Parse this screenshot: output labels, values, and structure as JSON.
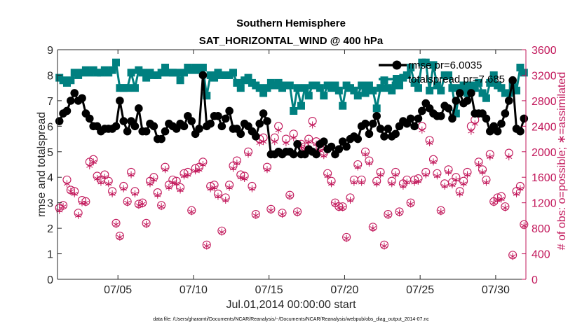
{
  "chart_data": {
    "type": "line",
    "title": "Southern Hemisphere",
    "subtitle": "SAT_HORIZONTAL_WIND @ 400 hPa",
    "xlabel": "Jul.01,2014 00:00:00 start",
    "ylabel": "rmse and totalspread",
    "ylabel_right": "# of obs: o=possible; ∗=assimilated",
    "xlim": [
      1.0,
      32.0
    ],
    "ylim": [
      0,
      9
    ],
    "ylim_right": [
      0,
      3600
    ],
    "x_ticks": [
      5,
      10,
      15,
      20,
      25,
      30
    ],
    "x_tick_labels": [
      "07/05",
      "07/10",
      "07/15",
      "07/20",
      "07/25",
      "07/30"
    ],
    "y_ticks": [
      0,
      1,
      2,
      3,
      4,
      5,
      6,
      7,
      8,
      9
    ],
    "y_ticks_right": [
      0,
      400,
      800,
      1200,
      1600,
      2000,
      2400,
      2800,
      3200,
      3600
    ],
    "footer": "data file: /Users/gharamti/Documents/NCAR/Reanalysis/~/Documents/NCAR/Reanalysis/webpub/obs_diag_output_2014-07.nc",
    "legend_position": "top-right",
    "colors": {
      "rmse": "#000000",
      "spread": "#008080",
      "obs": "#c2185b",
      "axis": "#262626"
    },
    "series": [
      {
        "name": "rmse pr=6.0035",
        "axis": "left",
        "color": "#000000",
        "marker": "circle",
        "x": [
          1.125,
          1.375,
          1.625,
          1.875,
          2.125,
          2.375,
          2.625,
          2.875,
          3.125,
          3.375,
          3.625,
          3.875,
          4.125,
          4.375,
          4.625,
          4.875,
          5.125,
          5.375,
          5.625,
          5.875,
          6.125,
          6.375,
          6.625,
          6.875,
          7.125,
          7.375,
          7.625,
          7.875,
          8.125,
          8.375,
          8.625,
          8.875,
          9.125,
          9.375,
          9.625,
          9.875,
          10.125,
          10.375,
          10.625,
          10.875,
          11.125,
          11.375,
          11.625,
          11.875,
          12.125,
          12.375,
          12.625,
          12.875,
          13.125,
          13.375,
          13.625,
          13.875,
          14.125,
          14.375,
          14.625,
          14.875,
          15.125,
          15.375,
          15.625,
          15.875,
          16.125,
          16.375,
          16.625,
          16.875,
          17.125,
          17.375,
          17.625,
          17.875,
          18.125,
          18.375,
          18.625,
          18.875,
          19.125,
          19.375,
          19.625,
          19.875,
          20.125,
          20.375,
          20.625,
          20.875,
          21.125,
          21.375,
          21.625,
          21.875,
          22.125,
          22.375,
          22.625,
          22.875,
          23.125,
          23.375,
          23.625,
          23.875,
          24.125,
          24.375,
          24.625,
          24.875,
          25.125,
          25.375,
          25.625,
          25.875,
          26.125,
          26.375,
          26.625,
          26.875,
          27.125,
          27.375,
          27.625,
          27.875,
          28.125,
          28.375,
          28.625,
          28.875,
          29.125,
          29.375,
          29.625,
          29.875,
          30.125,
          30.375,
          30.625,
          30.875,
          31.125,
          31.375,
          31.625,
          31.875
        ],
        "values": [
          6.2,
          6.5,
          6.6,
          7.0,
          7.3,
          7.0,
          7.1,
          6.5,
          6.3,
          6.0,
          6.0,
          5.8,
          5.9,
          5.9,
          5.9,
          6.0,
          7.0,
          6.2,
          5.8,
          6.2,
          6.0,
          6.7,
          5.8,
          5.8,
          6.1,
          6.0,
          5.5,
          5.5,
          5.8,
          6.1,
          6.0,
          5.9,
          6.1,
          6.0,
          6.4,
          6.2,
          5.7,
          5.9,
          8.0,
          6.0,
          6.1,
          6.4,
          6.4,
          6.0,
          6.3,
          6.6,
          5.9,
          5.9,
          5.7,
          6.1,
          6.0,
          5.8,
          5.6,
          6.1,
          6.5,
          6.2,
          4.9,
          4.9,
          5.0,
          4.9,
          5.0,
          5.0,
          4.9,
          5.3,
          4.9,
          4.9,
          5.1,
          5.0,
          4.9,
          5.3,
          5.4,
          5.1,
          5.2,
          4.9,
          5.1,
          5.4,
          5.2,
          5.5,
          5.6,
          5.5,
          6.0,
          6.1,
          5.7,
          6.1,
          6.4,
          5.9,
          5.6,
          5.9,
          5.6,
          5.7,
          6.0,
          6.2,
          6.1,
          6.3,
          6.0,
          6.3,
          6.6,
          6.9,
          6.7,
          6.5,
          6.4,
          6.4,
          6.8,
          6.7,
          6.3,
          7.0,
          7.3,
          6.9,
          7.0,
          7.3,
          6.5,
          6.5,
          6.5,
          6.3,
          5.8,
          6.0,
          5.8,
          6.1,
          6.5,
          7.0,
          7.8,
          5.9,
          5.8,
          6.3
        ]
      },
      {
        "name": "totalspread pr=7.685",
        "axis": "left",
        "color": "#008080",
        "marker": "square",
        "x": [
          1.125,
          1.375,
          1.625,
          1.875,
          2.125,
          2.375,
          2.625,
          2.875,
          3.125,
          3.375,
          3.625,
          3.875,
          4.125,
          4.375,
          4.625,
          4.875,
          5.125,
          5.375,
          5.625,
          5.875,
          6.125,
          6.375,
          6.625,
          6.875,
          7.125,
          7.375,
          7.625,
          7.875,
          8.125,
          8.375,
          8.625,
          8.875,
          9.125,
          9.375,
          9.625,
          9.875,
          10.125,
          10.375,
          10.625,
          10.875,
          11.125,
          11.375,
          11.625,
          11.875,
          12.125,
          12.375,
          12.625,
          12.875,
          13.125,
          13.375,
          13.625,
          13.875,
          14.125,
          14.375,
          14.625,
          14.875,
          15.125,
          15.375,
          15.625,
          15.875,
          16.125,
          16.375,
          16.625,
          16.875,
          17.125,
          17.375,
          17.625,
          17.875,
          18.125,
          18.375,
          18.625,
          18.875,
          19.125,
          19.375,
          19.625,
          19.875,
          20.125,
          20.375,
          20.625,
          20.875,
          21.125,
          21.375,
          21.625,
          21.875,
          22.125,
          22.375,
          22.625,
          22.875,
          23.125,
          23.375,
          23.625,
          23.875,
          24.125,
          24.375,
          24.625,
          24.875,
          25.125,
          25.375,
          25.625,
          25.875,
          26.125,
          26.375,
          26.625,
          26.875,
          27.125,
          27.375,
          27.625,
          27.875,
          28.125,
          28.375,
          28.625,
          28.875,
          29.125,
          29.375,
          29.625,
          29.875,
          30.125,
          30.375,
          30.625,
          30.875,
          31.125,
          31.375,
          31.625,
          31.875
        ],
        "values": [
          7.9,
          7.8,
          7.7,
          7.8,
          8.1,
          8.0,
          8.1,
          8.2,
          8.1,
          8.2,
          8.1,
          8.1,
          8.2,
          8.1,
          8.2,
          8.5,
          7.5,
          7.5,
          7.5,
          8.1,
          7.5,
          8.2,
          8.1,
          7.9,
          8.1,
          8.0,
          8.0,
          8.1,
          8.3,
          8.1,
          8.1,
          8.1,
          7.8,
          8.1,
          8.3,
          8.2,
          8.3,
          8.2,
          8.3,
          7.2,
          8.0,
          7.9,
          8.1,
          8.0,
          8.0,
          8.0,
          8.1,
          7.7,
          7.5,
          7.8,
          7.9,
          7.7,
          7.6,
          7.5,
          7.3,
          7.5,
          7.7,
          7.6,
          7.7,
          7.5,
          7.6,
          7.6,
          6.6,
          7.5,
          6.8,
          7.5,
          7.2,
          7.6,
          7.6,
          7.5,
          7.2,
          7.6,
          7.5,
          7.6,
          7.4,
          6.8,
          7.6,
          7.5,
          7.4,
          7.2,
          7.6,
          7.3,
          7.6,
          7.4,
          6.7,
          7.5,
          7.8,
          7.5,
          7.4,
          7.6,
          7.6,
          7.9,
          8.0,
          8.3,
          7.7,
          7.5,
          8.5,
          8.5,
          7.4,
          8.4,
          7.6,
          7.4,
          8.0,
          8.0,
          7.5,
          6.5,
          7.5,
          7.6,
          7.3,
          7.6,
          7.5,
          7.7,
          7.3,
          7.1,
          7.7,
          8.0,
          7.6,
          7.5,
          7.3,
          7.3,
          7.6,
          7.4,
          8.3,
          8.1
        ]
      },
      {
        "name": "# of obs possible",
        "axis": "right",
        "color": "#c2185b",
        "marker": "open-circle",
        "x": [
          1.125,
          1.375,
          1.625,
          1.875,
          2.125,
          2.375,
          2.625,
          2.875,
          3.125,
          3.375,
          3.625,
          3.875,
          4.125,
          4.375,
          4.625,
          4.875,
          5.125,
          5.375,
          5.625,
          5.875,
          6.125,
          6.375,
          6.625,
          6.875,
          7.125,
          7.375,
          7.625,
          7.875,
          8.125,
          8.375,
          8.625,
          8.875,
          9.125,
          9.375,
          9.625,
          9.875,
          10.125,
          10.375,
          10.625,
          10.875,
          11.125,
          11.375,
          11.625,
          11.875,
          12.125,
          12.375,
          12.625,
          12.875,
          13.125,
          13.375,
          13.625,
          13.875,
          14.125,
          14.375,
          14.625,
          14.875,
          15.125,
          15.375,
          15.625,
          15.875,
          16.125,
          16.375,
          16.625,
          16.875,
          17.125,
          17.375,
          17.625,
          17.875,
          18.125,
          18.375,
          18.625,
          18.875,
          19.125,
          19.375,
          19.625,
          19.875,
          20.125,
          20.375,
          20.625,
          20.875,
          21.125,
          21.375,
          21.625,
          21.875,
          22.125,
          22.375,
          22.625,
          22.875,
          23.125,
          23.375,
          23.625,
          23.875,
          24.125,
          24.375,
          24.625,
          24.875,
          25.125,
          25.375,
          25.625,
          25.875,
          26.125,
          26.375,
          26.625,
          26.875,
          27.125,
          27.375,
          27.625,
          27.875,
          28.125,
          28.375,
          28.625,
          28.875,
          29.125,
          29.375,
          29.625,
          29.875,
          30.125,
          30.375,
          30.625,
          30.875,
          31.125,
          31.375,
          31.625,
          31.875
        ],
        "values": [
          1120,
          1160,
          1560,
          1400,
          1380,
          1040,
          1240,
          1220,
          1840,
          1880,
          1620,
          1560,
          1640,
          1540,
          1380,
          880,
          680,
          1460,
          1220,
          1680,
          1380,
          1180,
          1200,
          880,
          1540,
          1600,
          1360,
          1160,
          1760,
          1480,
          1560,
          1540,
          1440,
          1660,
          1680,
          1080,
          1740,
          1760,
          1840,
          540,
          1460,
          1480,
          1340,
          760,
          1280,
          1480,
          1780,
          1860,
          1640,
          1620,
          2000,
          1460,
          1020,
          2200,
          2220,
          1760,
          1100,
          2220,
          2400,
          1040,
          2200,
          1320,
          2280,
          1060,
          2120,
          2080,
          2200,
          2480,
          2160,
          2060,
          1980,
          1660,
          1540,
          1200,
          1140,
          1140,
          660,
          1280,
          1560,
          1800,
          1560,
          2000,
          1860,
          820,
          1540,
          1680,
          540,
          1020,
          1540,
          1680,
          1060,
          1500,
          1560,
          1200,
          1560,
          1580,
          2400,
          1680,
          2180,
          1880,
          1660,
          1080,
          1500,
          1720,
          1520,
          1600,
          1380,
          1540,
          1680,
          2400,
          2500,
          1840,
          1720,
          1560,
          1960,
          1220,
          1280,
          1300,
          1140,
          1980,
          380,
          1380,
          1460,
          860
        ]
      },
      {
        "name": "# of obs assimilated",
        "axis": "right",
        "color": "#c2185b",
        "marker": "asterisk",
        "x": [
          1.125,
          1.375,
          1.625,
          1.875,
          2.125,
          2.375,
          2.625,
          2.875,
          3.125,
          3.375,
          3.625,
          3.875,
          4.125,
          4.375,
          4.625,
          4.875,
          5.125,
          5.375,
          5.625,
          5.875,
          6.125,
          6.375,
          6.625,
          6.875,
          7.125,
          7.375,
          7.625,
          7.875,
          8.125,
          8.375,
          8.625,
          8.875,
          9.125,
          9.375,
          9.625,
          9.875,
          10.125,
          10.375,
          10.625,
          10.875,
          11.125,
          11.375,
          11.625,
          11.875,
          12.125,
          12.375,
          12.625,
          12.875,
          13.125,
          13.375,
          13.625,
          13.875,
          14.125,
          14.375,
          14.625,
          14.875,
          15.125,
          15.375,
          15.625,
          15.875,
          16.125,
          16.375,
          16.625,
          16.875,
          17.125,
          17.375,
          17.625,
          17.875,
          18.125,
          18.375,
          18.625,
          18.875,
          19.125,
          19.375,
          19.625,
          19.875,
          20.125,
          20.375,
          20.625,
          20.875,
          21.125,
          21.375,
          21.625,
          21.875,
          22.125,
          22.375,
          22.625,
          22.875,
          23.125,
          23.375,
          23.625,
          23.875,
          24.125,
          24.375,
          24.625,
          24.875,
          25.125,
          25.375,
          25.625,
          25.875,
          26.125,
          26.375,
          26.625,
          26.875,
          27.125,
          27.375,
          27.625,
          27.875,
          28.125,
          28.375,
          28.625,
          28.875,
          29.125,
          29.375,
          29.625,
          29.875,
          30.125,
          30.375,
          30.625,
          30.875,
          31.125,
          31.375,
          31.625,
          31.875
        ],
        "values": [
          1080,
          1140,
          1500,
          1380,
          1340,
          1000,
          1200,
          1200,
          1780,
          1840,
          1580,
          1520,
          1600,
          1500,
          1340,
          860,
          660,
          1420,
          1200,
          1640,
          1340,
          1160,
          1180,
          860,
          1500,
          1560,
          1320,
          1140,
          1720,
          1440,
          1520,
          1500,
          1400,
          1620,
          1640,
          1060,
          1700,
          1720,
          1800,
          520,
          1420,
          1440,
          1300,
          740,
          1240,
          1440,
          1740,
          1820,
          1600,
          1580,
          1960,
          1420,
          1000,
          2140,
          2160,
          1720,
          1080,
          2160,
          2340,
          1020,
          2140,
          1300,
          2220,
          1040,
          2080,
          2040,
          2160,
          2420,
          2120,
          2020,
          1940,
          1620,
          1500,
          1180,
          1120,
          1120,
          640,
          1240,
          1520,
          1760,
          1520,
          1960,
          1820,
          800,
          1500,
          1640,
          520,
          1000,
          1500,
          1640,
          1040,
          1460,
          1520,
          1180,
          1520,
          1540,
          2340,
          1640,
          2140,
          1840,
          1620,
          1060,
          1460,
          1680,
          1480,
          1560,
          1340,
          1500,
          1640,
          2320,
          2440,
          1800,
          1680,
          1520,
          1920,
          1200,
          1240,
          1260,
          1120,
          1920,
          360,
          1340,
          1420,
          840
        ]
      }
    ]
  }
}
